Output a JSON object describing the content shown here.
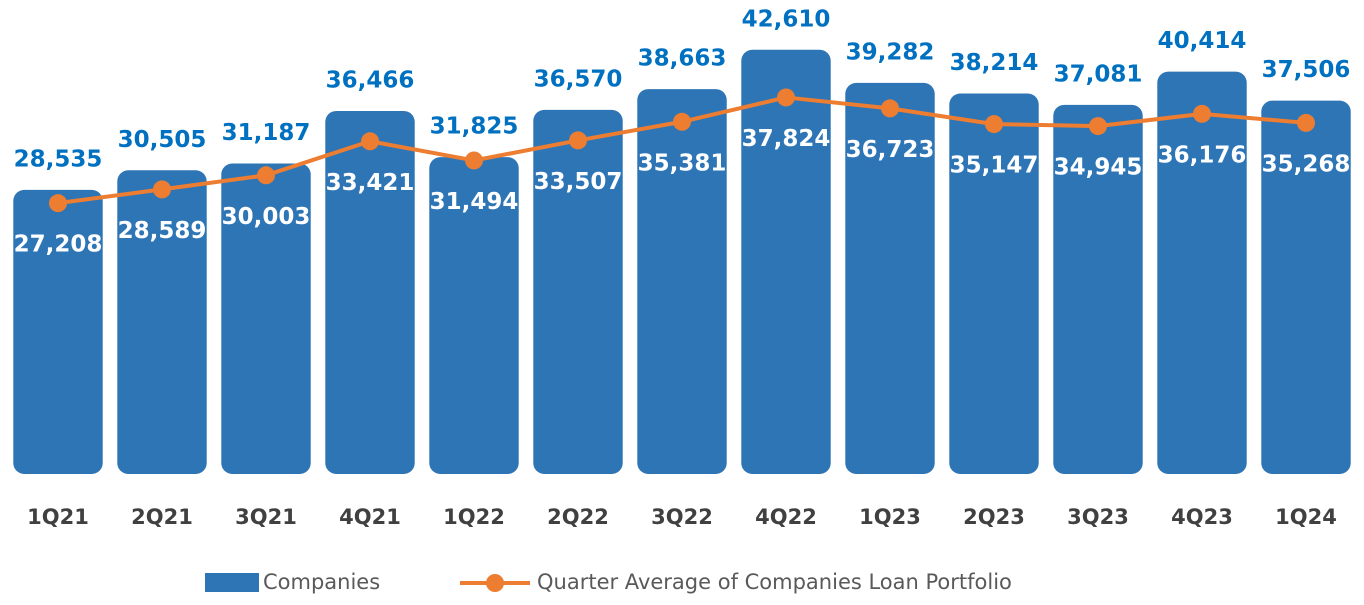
{
  "chart_data": {
    "type": "combo",
    "categories": [
      "1Q21",
      "2Q21",
      "3Q21",
      "4Q21",
      "1Q22",
      "2Q22",
      "3Q22",
      "4Q22",
      "1Q23",
      "2Q23",
      "3Q23",
      "4Q23",
      "1Q24"
    ],
    "ylim": [
      0,
      45000
    ],
    "series": [
      {
        "name": "Companies",
        "type": "bar",
        "color": "#2e75b6",
        "values": [
          28535,
          30505,
          31187,
          36466,
          31825,
          36570,
          38663,
          42610,
          39282,
          38214,
          37081,
          40414,
          37506
        ],
        "value_labels": [
          "28,535",
          "30,505",
          "31,187",
          "36,466",
          "31,825",
          "36,570",
          "38,663",
          "42,610",
          "39,282",
          "38,214",
          "37,081",
          "40,414",
          "37,506"
        ]
      },
      {
        "name": "Quarter Average of Companies Loan Portfolio",
        "type": "line",
        "color": "#ed7d31",
        "values": [
          27208,
          28589,
          30003,
          33421,
          31494,
          33507,
          35381,
          37824,
          36723,
          35147,
          34945,
          36176,
          35268
        ],
        "value_labels": [
          "27,208",
          "28,589",
          "30,003",
          "33,421",
          "31,494",
          "33,507",
          "35,381",
          "37,824",
          "36,723",
          "35,147",
          "34,945",
          "36,176",
          "35,268"
        ]
      }
    ]
  }
}
